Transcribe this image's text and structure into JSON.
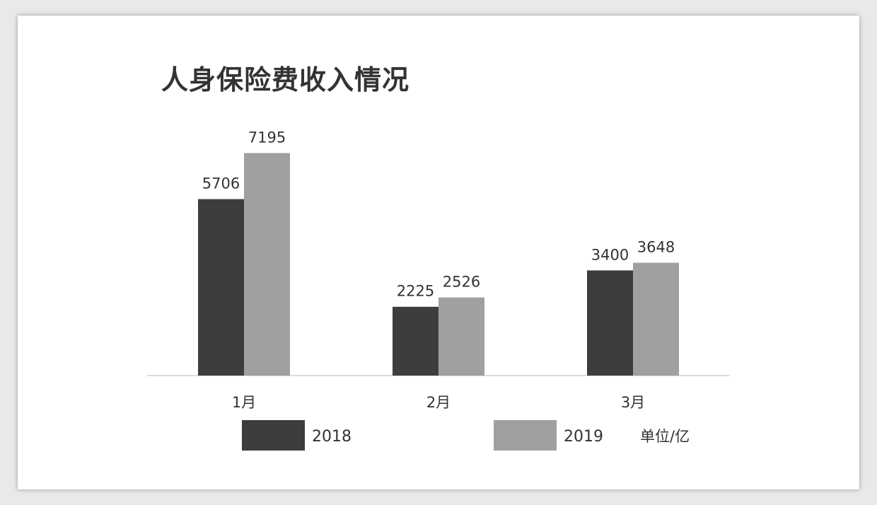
{
  "chart_data": {
    "type": "bar",
    "title": "人身保险费收入情况",
    "categories": [
      "1月",
      "2月",
      "3月"
    ],
    "series": [
      {
        "name": "2018",
        "values": [
          5706,
          2225,
          3400
        ],
        "color": "#3d3d3d"
      },
      {
        "name": "2019",
        "values": [
          7195,
          2526,
          3648
        ],
        "color": "#a0a0a0"
      }
    ],
    "unit_label": "单位/亿",
    "ylim": [
      0,
      8000
    ],
    "grid": false,
    "legend_position": "bottom",
    "axis_color": "#d0d0d0"
  }
}
